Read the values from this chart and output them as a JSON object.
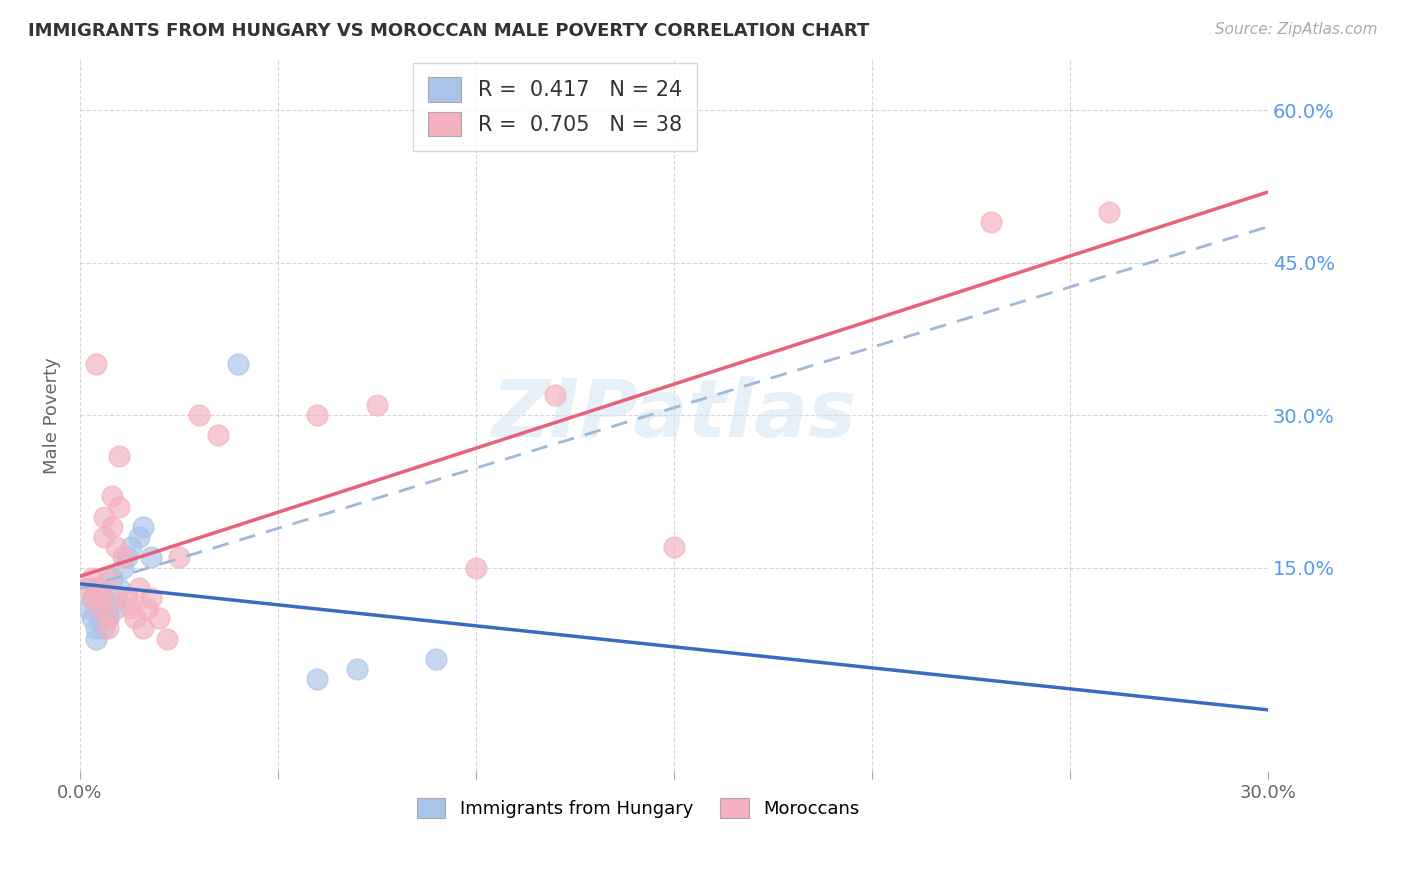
{
  "title": "IMMIGRANTS FROM HUNGARY VS MOROCCAN MALE POVERTY CORRELATION CHART",
  "source": "Source: ZipAtlas.com",
  "ylabel": "Male Poverty",
  "xlim": [
    0.0,
    0.3
  ],
  "ylim": [
    -0.05,
    0.65
  ],
  "xtick_vals": [
    0.0,
    0.05,
    0.1,
    0.15,
    0.2,
    0.25,
    0.3
  ],
  "xtick_labels": [
    "0.0%",
    "",
    "",
    "",
    "",
    "",
    "30.0%"
  ],
  "ytick_vals": [
    0.15,
    0.3,
    0.45,
    0.6
  ],
  "right_ytick_labels": [
    "15.0%",
    "30.0%",
    "45.0%",
    "60.0%"
  ],
  "right_ytick_vals": [
    0.15,
    0.3,
    0.45,
    0.6
  ],
  "legend_r_blue": "R =  0.417",
  "legend_n_blue": "N = 24",
  "legend_r_pink": "R =  0.705",
  "legend_n_pink": "N = 38",
  "blue_scatter_color": "#a8c4e8",
  "pink_scatter_color": "#f4b0be",
  "blue_line_color": "#3a6bbf",
  "pink_line_color": "#e8607a",
  "dashed_line_color": "#a0b8d8",
  "watermark": "ZIPatlas",
  "hungary_scatter": [
    [
      0.002,
      0.11
    ],
    [
      0.003,
      0.12
    ],
    [
      0.003,
      0.1
    ],
    [
      0.004,
      0.09
    ],
    [
      0.004,
      0.08
    ],
    [
      0.005,
      0.13
    ],
    [
      0.005,
      0.1
    ],
    [
      0.006,
      0.12
    ],
    [
      0.006,
      0.09
    ],
    [
      0.007,
      0.11
    ],
    [
      0.007,
      0.1
    ],
    [
      0.008,
      0.14
    ],
    [
      0.009,
      0.11
    ],
    [
      0.01,
      0.13
    ],
    [
      0.011,
      0.15
    ],
    [
      0.012,
      0.16
    ],
    [
      0.013,
      0.17
    ],
    [
      0.015,
      0.18
    ],
    [
      0.016,
      0.19
    ],
    [
      0.018,
      0.16
    ],
    [
      0.04,
      0.35
    ],
    [
      0.06,
      0.04
    ],
    [
      0.07,
      0.05
    ],
    [
      0.09,
      0.06
    ]
  ],
  "moroccan_scatter": [
    [
      0.002,
      0.13
    ],
    [
      0.003,
      0.14
    ],
    [
      0.003,
      0.12
    ],
    [
      0.004,
      0.35
    ],
    [
      0.004,
      0.13
    ],
    [
      0.005,
      0.11
    ],
    [
      0.005,
      0.12
    ],
    [
      0.006,
      0.2
    ],
    [
      0.006,
      0.18
    ],
    [
      0.007,
      0.1
    ],
    [
      0.007,
      0.09
    ],
    [
      0.007,
      0.14
    ],
    [
      0.008,
      0.22
    ],
    [
      0.008,
      0.19
    ],
    [
      0.009,
      0.17
    ],
    [
      0.009,
      0.12
    ],
    [
      0.01,
      0.26
    ],
    [
      0.01,
      0.21
    ],
    [
      0.011,
      0.16
    ],
    [
      0.012,
      0.12
    ],
    [
      0.013,
      0.11
    ],
    [
      0.014,
      0.1
    ],
    [
      0.015,
      0.13
    ],
    [
      0.016,
      0.09
    ],
    [
      0.017,
      0.11
    ],
    [
      0.018,
      0.12
    ],
    [
      0.02,
      0.1
    ],
    [
      0.022,
      0.08
    ],
    [
      0.025,
      0.16
    ],
    [
      0.03,
      0.3
    ],
    [
      0.035,
      0.28
    ],
    [
      0.06,
      0.3
    ],
    [
      0.075,
      0.31
    ],
    [
      0.1,
      0.15
    ],
    [
      0.12,
      0.32
    ],
    [
      0.15,
      0.17
    ],
    [
      0.23,
      0.49
    ],
    [
      0.26,
      0.5
    ]
  ],
  "background_color": "#ffffff",
  "grid_color": "#cccccc",
  "title_color": "#333333",
  "axis_label_color": "#666666",
  "right_axis_color": "#5599ee",
  "tick_label_color": "#666666"
}
